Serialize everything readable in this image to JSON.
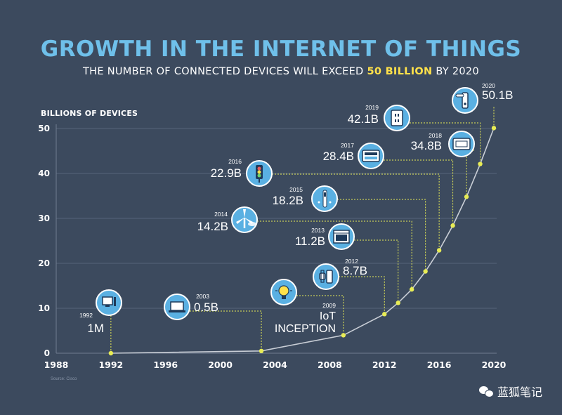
{
  "header": {
    "title": "GROWTH IN THE INTERNET OF THINGS",
    "subtitle_pre": "THE NUMBER OF CONNECTED DEVICES WILL EXCEED ",
    "subtitle_highlight": "50 BILLION",
    "subtitle_post": " BY 2020"
  },
  "source_note": "Source: Cisco",
  "watermark": "蓝狐笔记",
  "colors": {
    "background": "#3c4a5e",
    "title": "#6fc0ea",
    "highlight": "#ffe14a",
    "point": "#e8ec55",
    "icon_circle": "#5ab0e2",
    "line": "#c9ced6"
  },
  "chart_data": {
    "type": "line",
    "title": "GROWTH IN THE INTERNET OF THINGS",
    "ylabel": "BILLIONS OF DEVICES",
    "xlabel": "",
    "xlim": [
      1988,
      2020
    ],
    "ylim": [
      0,
      50
    ],
    "x_ticks": [
      "1988",
      "1992",
      "1996",
      "2000",
      "2004",
      "2008",
      "2012",
      "2016",
      "2020"
    ],
    "y_ticks": [
      "0",
      "10",
      "20",
      "30",
      "40",
      "50"
    ],
    "grid": true,
    "points": [
      {
        "x": 1992,
        "y": 0.001
      },
      {
        "x": 2003,
        "y": 0.5
      },
      {
        "x": 2009,
        "y": 4
      },
      {
        "x": 2012,
        "y": 8.7
      },
      {
        "x": 2013,
        "y": 11.2
      },
      {
        "x": 2014,
        "y": 14.2
      },
      {
        "x": 2015,
        "y": 18.2
      },
      {
        "x": 2016,
        "y": 22.9
      },
      {
        "x": 2017,
        "y": 28.4
      },
      {
        "x": 2018,
        "y": 34.8
      },
      {
        "x": 2019,
        "y": 42.1
      },
      {
        "x": 2020,
        "y": 50.1
      }
    ],
    "annotations": [
      {
        "year": "1992",
        "value": "1M",
        "icon": "computer-icon"
      },
      {
        "year": "2003",
        "value": "0.5B",
        "icon": "laptop-icon"
      },
      {
        "year": "2009",
        "value": "IoT",
        "value2": "INCEPTION",
        "icon": "lightbulb-icon"
      },
      {
        "year": "2012",
        "value": "8.7B",
        "icon": "smartwatch-phone-icon"
      },
      {
        "year": "2013",
        "value": "11.2B",
        "icon": "oven-icon"
      },
      {
        "year": "2014",
        "value": "14.2B",
        "icon": "wind-turbine-icon"
      },
      {
        "year": "2015",
        "value": "18.2B",
        "icon": "toothbrush-icon"
      },
      {
        "year": "2016",
        "value": "22.9B",
        "icon": "traffic-light-icon"
      },
      {
        "year": "2017",
        "value": "28.4B",
        "icon": "dashboard-icon"
      },
      {
        "year": "2018",
        "value": "34.8B",
        "icon": "thermostat-icon"
      },
      {
        "year": "2019",
        "value": "42.1B",
        "icon": "smart-outlet-icon"
      },
      {
        "year": "2020",
        "value": "50.1B",
        "icon": "smart-lock-icon"
      }
    ]
  }
}
